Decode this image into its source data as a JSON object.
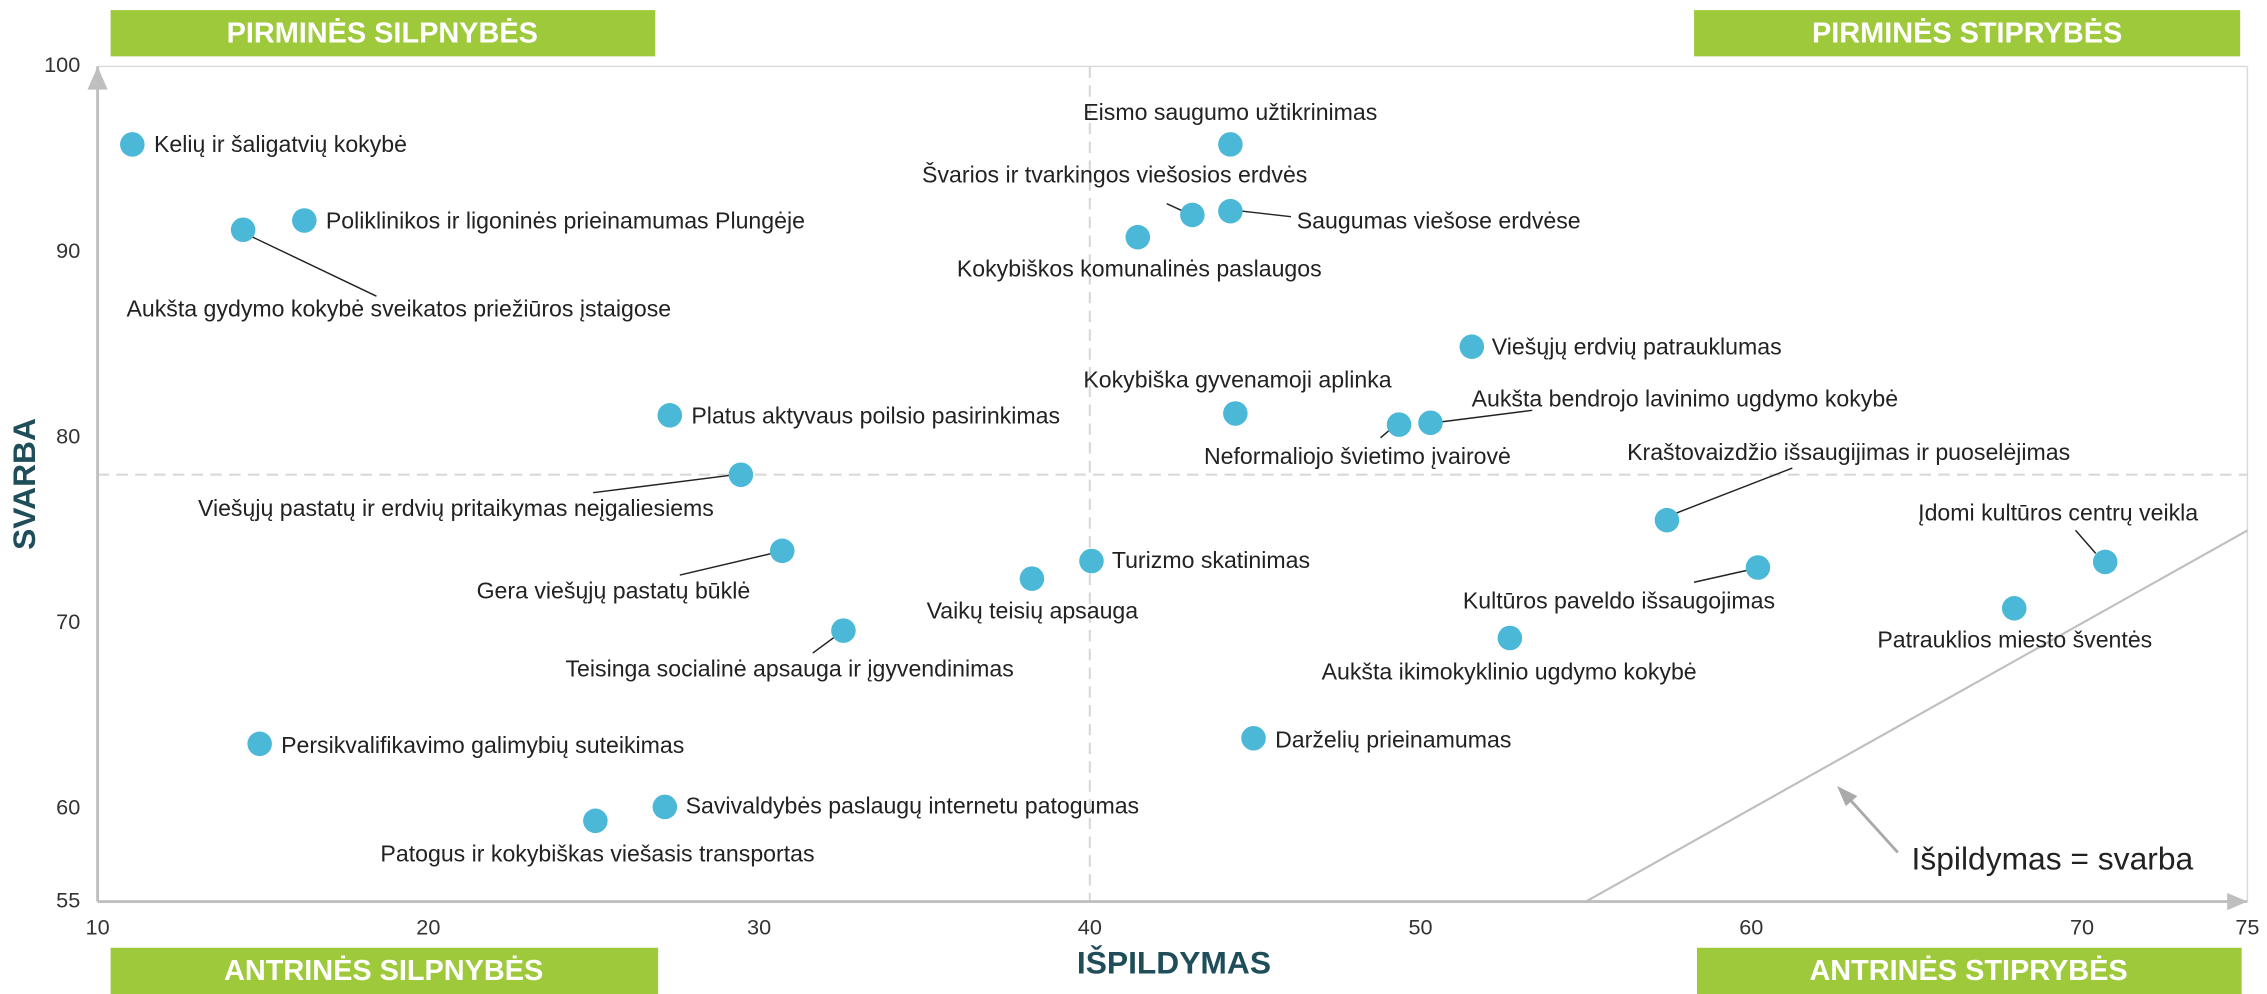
{
  "chart_data": {
    "type": "scatter",
    "x_label": "IŠPILDYMAS",
    "y_label": "SVARBA",
    "xlim": [
      10,
      75
    ],
    "ylim": [
      55,
      100
    ],
    "xticks": [
      10,
      20,
      30,
      40,
      50,
      60,
      70,
      75
    ],
    "yticks": [
      55,
      60,
      70,
      80,
      90,
      100
    ],
    "reference_x": 40,
    "reference_y": 78,
    "color": "#4cb8d8",
    "quadrants": {
      "top_left": "PIRMINĖS SILPNYBĖS",
      "top_right": "PIRMINĖS STIPRYBĖS",
      "bottom_left": "ANTRINĖS SILPNYBĖS",
      "bottom_right": "ANTRINĖS STIPRYBĖS"
    },
    "identity_label": "Išpildymas = svarba",
    "points": [
      {
        "label": "Kelių ir šaligatvių kokybė",
        "x": 11.05,
        "y": 95.8
      },
      {
        "label": "Poliklinikos ir ligoninės prieinamumas Plungėje",
        "x": 16.25,
        "y": 91.7
      },
      {
        "label": "Aukšta gydymo kokybė sveikatos priežiūros įstaigose",
        "x": 14.4,
        "y": 91.2
      },
      {
        "label": "Eismo saugumo užtikrinimas",
        "x": 44.25,
        "y": 95.8
      },
      {
        "label": "Švarios ir tvarkingos viešosios erdvės",
        "x": 43.1,
        "y": 92.0
      },
      {
        "label": "Saugumas viešose erdvėse",
        "x": 44.25,
        "y": 92.2
      },
      {
        "label": "Kokybiškos komunalinės paslaugos",
        "x": 41.45,
        "y": 90.8
      },
      {
        "label": "Viešųjų erdvių patrauklumas",
        "x": 51.55,
        "y": 84.9
      },
      {
        "label": "Kokybiška gyvenamoji aplinka",
        "x": 44.4,
        "y": 81.3
      },
      {
        "label": "Neformaliojo švietimo įvairovė",
        "x": 49.35,
        "y": 80.7
      },
      {
        "label": "Aukšta bendrojo lavinimo ugdymo kokybė",
        "x": 50.3,
        "y": 80.8
      },
      {
        "label": "Platus aktyvaus poilsio pasirinkimas",
        "x": 27.3,
        "y": 81.2
      },
      {
        "label": "Viešųjų pastatų ir erdvių pritaikymas neįgaliesiems",
        "x": 29.45,
        "y": 78.0
      },
      {
        "label": "Kraštovaizdžio išsaugijimas ir puoselėjimas",
        "x": 57.45,
        "y": 75.55
      },
      {
        "label": "Įdomi kultūros centrų veikla",
        "x": 70.7,
        "y": 73.3
      },
      {
        "label": "Patrauklios miesto šventės",
        "x": 67.95,
        "y": 70.8
      },
      {
        "label": "Kultūros paveldo išsaugojimas",
        "x": 60.2,
        "y": 73.0
      },
      {
        "label": "Aukšta ikimokyklinio ugdymo kokybė",
        "x": 52.7,
        "y": 69.2
      },
      {
        "label": "Gera viešųjų pastatų būklė",
        "x": 30.7,
        "y": 73.9
      },
      {
        "label": "Turizmo skatinimas",
        "x": 40.05,
        "y": 73.35
      },
      {
        "label": "Vaikų teisių apsauga",
        "x": 38.25,
        "y": 72.4
      },
      {
        "label": "Teisinga socialinė apsauga ir įgyvendinimas",
        "x": 32.55,
        "y": 69.6
      },
      {
        "label": "Darželių prieinamumas",
        "x": 44.95,
        "y": 63.8
      },
      {
        "label": "Persikvalifikavimo galimybių suteikimas",
        "x": 14.9,
        "y": 63.5
      },
      {
        "label": "Savivaldybės paslaugų internetu patogumas",
        "x": 27.15,
        "y": 60.1
      },
      {
        "label": "Patogus ir kokybiškas viešasis transportas",
        "x": 25.05,
        "y": 59.35
      }
    ]
  }
}
